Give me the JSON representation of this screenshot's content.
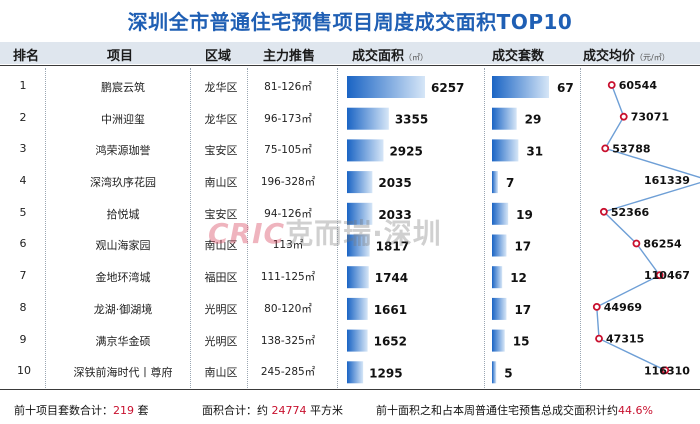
{
  "title": "深圳全市普通住宅预售项目周度成交面积TOP10",
  "headers": {
    "rank": "排名",
    "project": "项目",
    "district": "区域",
    "main_range": "主力推售",
    "area": "成交面积",
    "area_unit": "（㎡）",
    "units": "成交套数",
    "price": "成交均价",
    "price_unit": "（元/㎡）"
  },
  "rows": [
    {
      "rank": "1",
      "project": "鹏宸云筑",
      "district": "龙华区",
      "range": "81-126㎡"
    },
    {
      "rank": "2",
      "project": "中洲迎玺",
      "district": "龙华区",
      "range": "96-173㎡"
    },
    {
      "rank": "3",
      "project": "鸿荣源珈誉",
      "district": "宝安区",
      "range": "75-105㎡"
    },
    {
      "rank": "4",
      "project": "深湾玖序花园",
      "district": "南山区",
      "range": "196-328㎡"
    },
    {
      "rank": "5",
      "project": "拾悦城",
      "district": "宝安区",
      "range": "94-126㎡"
    },
    {
      "rank": "6",
      "project": "观山海家园",
      "district": "南山区",
      "range": "113㎡"
    },
    {
      "rank": "7",
      "project": "金地环湾城",
      "district": "福田区",
      "range": "111-125㎡"
    },
    {
      "rank": "8",
      "project": "龙湖·御湖境",
      "district": "光明区",
      "range": "80-120㎡"
    },
    {
      "rank": "9",
      "project": "满京华金硕",
      "district": "光明区",
      "range": "138-325㎡"
    },
    {
      "rank": "10",
      "project": "深铁前海时代丨尊府",
      "district": "南山区",
      "range": "245-285㎡"
    }
  ],
  "chart_data": {
    "type": "table",
    "categories": [
      "鹏宸云筑",
      "中洲迎玺",
      "鸿荣源珈誉",
      "深湾玖序花园",
      "拾悦城",
      "观山海家园",
      "金地环湾城",
      "龙湖·御湖境",
      "满京华金硕",
      "深铁前海时代丨尊府"
    ],
    "series": [
      {
        "name": "成交面积",
        "values": [
          6257,
          3355,
          2925,
          2035,
          2033,
          1817,
          1744,
          1661,
          1652,
          1295
        ],
        "labels": [
          "6257",
          "3355",
          "2925",
          "2035",
          "2033",
          "1817",
          "1744",
          "1661",
          "1652",
          "1295"
        ]
      },
      {
        "name": "成交套数",
        "values": [
          67,
          29,
          31,
          7,
          19,
          17,
          12,
          17,
          15,
          5
        ],
        "labels": [
          "67",
          "29",
          "31",
          "7",
          "19",
          "17",
          "12",
          "17",
          "15",
          "5"
        ]
      },
      {
        "name": "成交均价",
        "values": [
          60544,
          73071,
          53788,
          161339,
          52366,
          86254,
          110467,
          44969,
          47315,
          116310
        ],
        "labels": [
          "60544",
          "73071",
          "53788",
          "161339",
          "52366",
          "86254",
          "110467",
          "44969",
          "47315",
          "116310"
        ]
      }
    ],
    "colors": {
      "bar_dark": "#1a64c4",
      "bar_light": "#d6e6f7",
      "line": "#6e9fd6",
      "marker": "#c8102e"
    }
  },
  "footer": {
    "units_label": "前十项目套数合计：",
    "units_value": "219",
    "units_suffix": " 套",
    "area_label": "面积合计：约 ",
    "area_value": "24774",
    "area_suffix": " 平方米",
    "share_label": "前十面积之和占本周普通住宅预售总成交面积计约",
    "share_value": "44.6%"
  },
  "watermark": {
    "brand": "CRIC",
    "text": "克而瑞·深圳"
  }
}
